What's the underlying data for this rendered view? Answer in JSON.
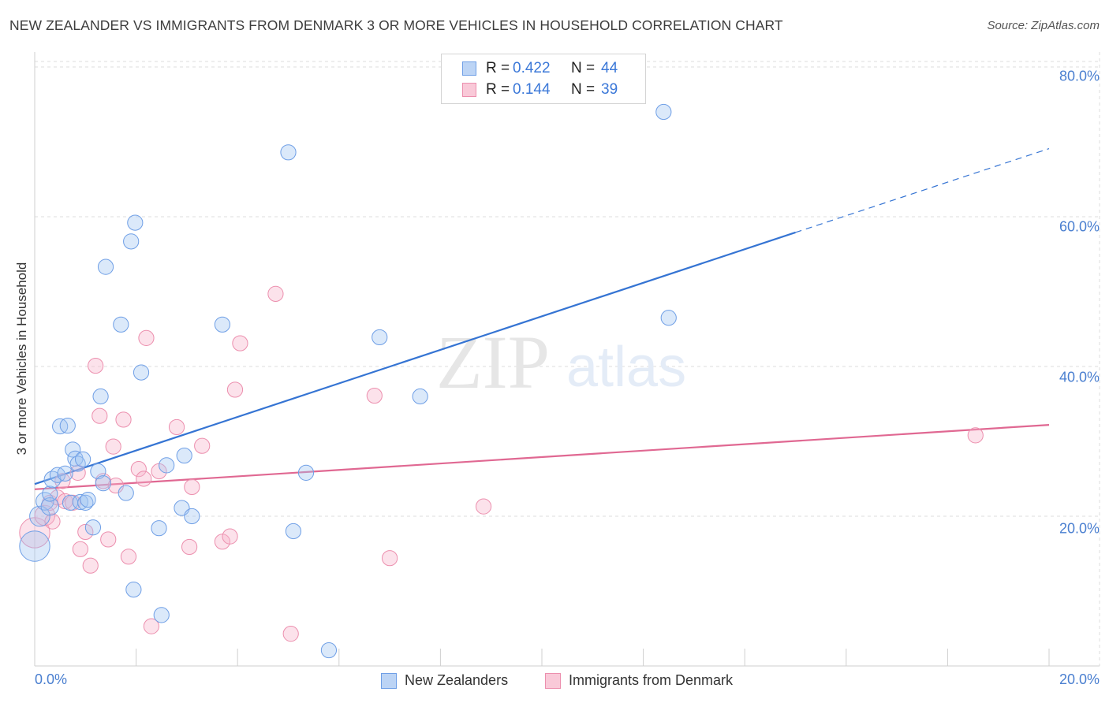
{
  "title": "NEW ZEALANDER VS IMMIGRANTS FROM DENMARK 3 OR MORE VEHICLES IN HOUSEHOLD CORRELATION CHART",
  "source": "Source: ZipAtlas.com",
  "watermark": {
    "zip": "ZIP",
    "atlas": "atlas"
  },
  "legend": {
    "r_label": "R =",
    "n_label": "N =",
    "rows": [
      {
        "r": "0.422",
        "n": "44",
        "fill": "#bcd4f5",
        "stroke": "#6f9fe6"
      },
      {
        "r": "0.144",
        "n": "39",
        "fill": "#f9c9d8",
        "stroke": "#ec8fae"
      }
    ]
  },
  "bottom_legend": {
    "blue": "New Zealanders",
    "pink": "Immigrants from Denmark"
  },
  "colors": {
    "blue_line": "#3574d3",
    "pink_line": "#e06892",
    "tick_text": "#4a7fd0",
    "grid": "#dedede"
  },
  "chart_data": {
    "type": "scatter",
    "ylabel": "3 or more Vehicles in Household",
    "xlim": [
      0,
      20
    ],
    "ylim": [
      0,
      82
    ],
    "ytick_labels": [
      "80.0%",
      "60.0%",
      "40.0%",
      "20.0%"
    ],
    "ytick_values": [
      80,
      60,
      40,
      20
    ],
    "xtick_labels": [
      "0.0%",
      "20.0%"
    ],
    "grid": true,
    "series": [
      {
        "name": "New Zealanders",
        "r": 0.422,
        "n": 44,
        "trend": {
          "x0": 0,
          "y0": 24.3,
          "x1": 20,
          "y1": 69.1,
          "solid_until_x": 15.0
        },
        "points": [
          [
            0.0,
            16.0,
            2.4
          ],
          [
            0.1,
            20.0,
            1.6
          ],
          [
            0.2,
            22.0,
            1.4
          ],
          [
            0.3,
            21.3,
            1.4
          ],
          [
            0.3,
            23.0,
            1.2
          ],
          [
            0.35,
            24.9,
            1.3
          ],
          [
            0.45,
            25.5,
            1.2
          ],
          [
            0.5,
            32.0,
            1.2
          ],
          [
            0.6,
            25.7,
            1.2
          ],
          [
            0.65,
            32.1,
            1.2
          ],
          [
            0.7,
            21.8,
            1.2
          ],
          [
            0.75,
            28.9,
            1.2
          ],
          [
            0.8,
            27.7,
            1.2
          ],
          [
            0.85,
            27.0,
            1.2
          ],
          [
            0.9,
            21.9,
            1.2
          ],
          [
            0.95,
            27.6,
            1.2
          ],
          [
            1.0,
            21.8,
            1.2
          ],
          [
            1.05,
            22.2,
            1.2
          ],
          [
            1.15,
            18.5,
            1.2
          ],
          [
            1.25,
            26.0,
            1.2
          ],
          [
            1.3,
            36.0,
            1.2
          ],
          [
            1.35,
            24.4,
            1.2
          ],
          [
            1.4,
            53.3,
            1.2
          ],
          [
            1.7,
            45.6,
            1.2
          ],
          [
            1.8,
            23.1,
            1.2
          ],
          [
            1.9,
            56.7,
            1.2
          ],
          [
            1.95,
            10.2,
            1.2
          ],
          [
            1.98,
            59.2,
            1.2
          ],
          [
            2.1,
            39.2,
            1.2
          ],
          [
            2.45,
            18.4,
            1.2
          ],
          [
            2.5,
            6.8,
            1.2
          ],
          [
            2.6,
            26.8,
            1.2
          ],
          [
            2.9,
            21.1,
            1.2
          ],
          [
            2.95,
            28.1,
            1.2
          ],
          [
            3.1,
            20.0,
            1.2
          ],
          [
            3.7,
            45.6,
            1.2
          ],
          [
            5.0,
            68.6,
            1.2
          ],
          [
            5.1,
            18.0,
            1.2
          ],
          [
            5.35,
            25.8,
            1.2
          ],
          [
            5.8,
            2.1,
            1.2
          ],
          [
            6.8,
            43.9,
            1.2
          ],
          [
            7.6,
            36.0,
            1.2
          ],
          [
            12.4,
            74.0,
            1.2
          ],
          [
            12.5,
            46.5,
            1.2
          ]
        ]
      },
      {
        "name": "Immigrants from Denmark",
        "r": 0.144,
        "n": 39,
        "trend": {
          "x0": 0,
          "y0": 23.6,
          "x1": 20,
          "y1": 32.2
        },
        "points": [
          [
            0.0,
            17.8,
            2.4
          ],
          [
            0.2,
            20.1,
            1.6
          ],
          [
            0.3,
            21.8,
            1.2
          ],
          [
            0.35,
            19.3,
            1.2
          ],
          [
            0.45,
            22.5,
            1.2
          ],
          [
            0.55,
            24.7,
            1.2
          ],
          [
            0.6,
            22.0,
            1.2
          ],
          [
            0.75,
            21.8,
            1.2
          ],
          [
            0.85,
            25.8,
            1.2
          ],
          [
            0.9,
            15.6,
            1.2
          ],
          [
            1.0,
            17.9,
            1.2
          ],
          [
            1.1,
            13.4,
            1.2
          ],
          [
            1.2,
            40.1,
            1.2
          ],
          [
            1.28,
            33.4,
            1.2
          ],
          [
            1.35,
            24.7,
            1.2
          ],
          [
            1.45,
            16.9,
            1.2
          ],
          [
            1.55,
            29.3,
            1.2
          ],
          [
            1.6,
            24.1,
            1.2
          ],
          [
            1.75,
            32.9,
            1.2
          ],
          [
            1.85,
            14.6,
            1.2
          ],
          [
            2.05,
            26.3,
            1.2
          ],
          [
            2.15,
            25.0,
            1.2
          ],
          [
            2.2,
            43.8,
            1.2
          ],
          [
            2.3,
            5.3,
            1.2
          ],
          [
            2.45,
            26.0,
            1.2
          ],
          [
            2.8,
            31.9,
            1.2
          ],
          [
            3.05,
            15.9,
            1.2
          ],
          [
            3.1,
            23.9,
            1.2
          ],
          [
            3.3,
            29.4,
            1.2
          ],
          [
            3.7,
            16.6,
            1.2
          ],
          [
            3.85,
            17.3,
            1.2
          ],
          [
            3.95,
            36.9,
            1.2
          ],
          [
            4.05,
            43.1,
            1.2
          ],
          [
            4.75,
            49.7,
            1.2
          ],
          [
            5.05,
            4.3,
            1.2
          ],
          [
            6.7,
            36.1,
            1.2
          ],
          [
            7.0,
            14.4,
            1.2
          ],
          [
            8.85,
            21.3,
            1.2
          ],
          [
            18.55,
            30.8,
            1.2
          ]
        ]
      }
    ]
  }
}
